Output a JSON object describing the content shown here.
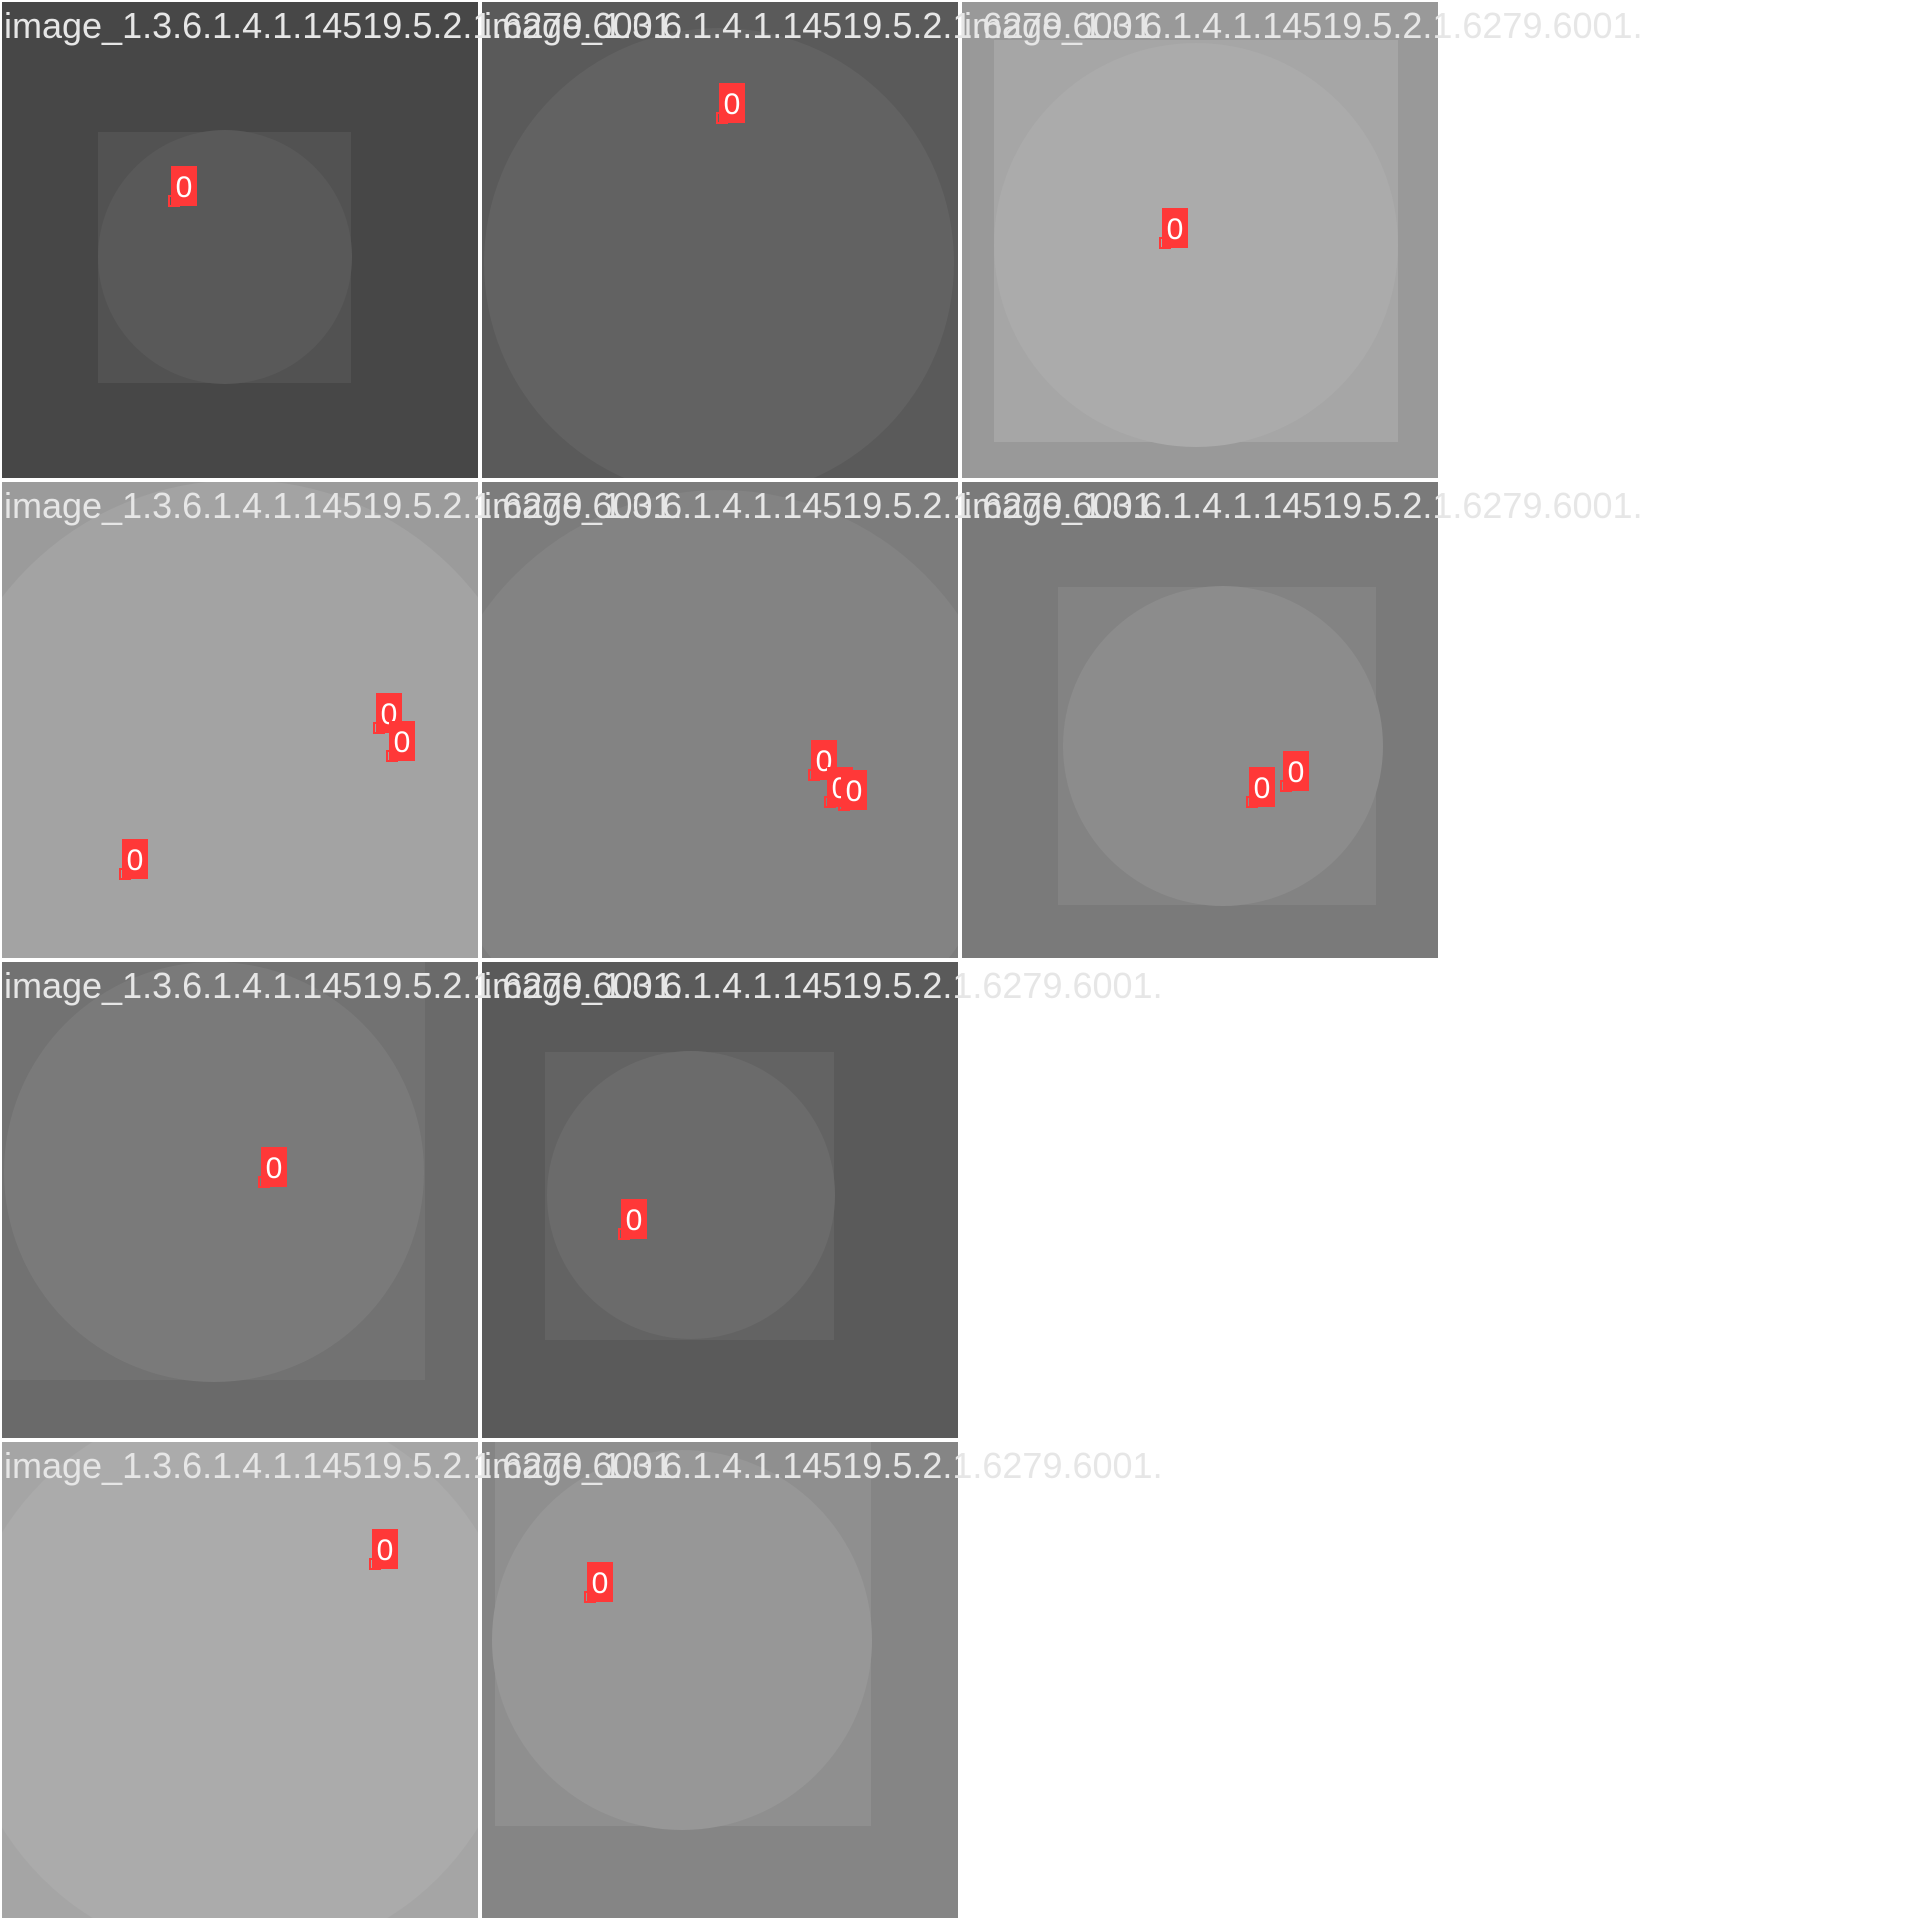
{
  "tiles": [
    {
      "title": "image_1.3.6.1.4.1.14519.5.2.1.6279.6001.",
      "boxes": [
        {
          "label": "0"
        }
      ]
    },
    {
      "title": "image_1.3.6.1.4.1.14519.5.2.1.6279.6001.",
      "boxes": [
        {
          "label": "0"
        }
      ]
    },
    {
      "title": "image_1.3.6.1.4.1.14519.5.2.1.6279.6001.",
      "boxes": [
        {
          "label": "0"
        }
      ]
    },
    {
      "title": "image_1.3.6.1.4.1.14519.5.2.1.6279.6001.",
      "boxes": [
        {
          "label": "0"
        },
        {
          "label": "0"
        },
        {
          "label": "0"
        }
      ]
    },
    {
      "title": "image_1.3.6.1.4.1.14519.5.2.1.6279.6001.",
      "boxes": [
        {
          "label": "0"
        },
        {
          "label": "0"
        },
        {
          "label": "0"
        }
      ]
    },
    {
      "title": "image_1.3.6.1.4.1.14519.5.2.1.6279.6001.",
      "boxes": [
        {
          "label": "0"
        },
        {
          "label": "0"
        }
      ]
    },
    {
      "title": "image_1.3.6.1.4.1.14519.5.2.1.6279.6001.",
      "boxes": [
        {
          "label": "0"
        }
      ]
    },
    {
      "title": "image_1.3.6.1.4.1.14519.5.2.1.6279.6001.",
      "boxes": [
        {
          "label": "0"
        }
      ]
    },
    {
      "title": "image_1.3.6.1.4.1.14519.5.2.1.6279.6001.",
      "boxes": [
        {
          "label": "0"
        }
      ]
    },
    {
      "title": "image_1.3.6.1.4.1.14519.5.2.1.6279.6001.",
      "boxes": [
        {
          "label": "0"
        }
      ]
    }
  ]
}
